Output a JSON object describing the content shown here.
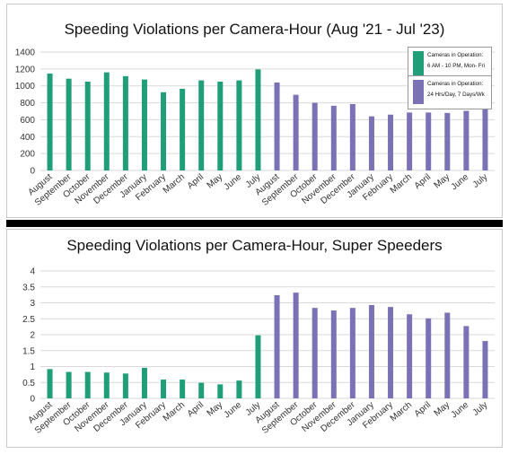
{
  "colors": {
    "green": "#1f9e78",
    "purple": "#7a72b5"
  },
  "chart_data": [
    {
      "type": "bar",
      "title": "Speeding Violations per Camera-Hour (Aug '21 - Jul '23)",
      "categories": [
        "August",
        "September",
        "October",
        "November",
        "December",
        "January",
        "February",
        "March",
        "April",
        "May",
        "June",
        "July",
        "August",
        "September",
        "October",
        "November",
        "December",
        "January",
        "February",
        "March",
        "April",
        "May",
        "June",
        "July"
      ],
      "values": [
        1145,
        1085,
        1050,
        1160,
        1115,
        1075,
        925,
        965,
        1065,
        1050,
        1065,
        1195,
        1040,
        895,
        800,
        765,
        785,
        640,
        660,
        685,
        685,
        680,
        705,
        800
      ],
      "bar_colors": [
        "green",
        "green",
        "green",
        "green",
        "green",
        "green",
        "green",
        "green",
        "green",
        "green",
        "green",
        "green",
        "purple",
        "purple",
        "purple",
        "purple",
        "purple",
        "purple",
        "purple",
        "purple",
        "purple",
        "purple",
        "purple",
        "purple"
      ],
      "ylim": [
        0,
        1400
      ],
      "yticks": [
        "0",
        "200",
        "400",
        "600",
        "800",
        "1000",
        "1200",
        "1400"
      ],
      "grid": true,
      "legend": [
        {
          "color": "green",
          "line1": "Cameras in Operation:",
          "line2": "6 AM - 10 PM, Mon- Fri"
        },
        {
          "color": "purple",
          "line1": "Cameras in Operation:",
          "line2": "24 Hrs/Day, 7 Days/Wk"
        }
      ]
    },
    {
      "type": "bar",
      "title": "Speeding Violations per Camera-Hour, Super Speeders",
      "categories": [
        "August",
        "September",
        "October",
        "November",
        "December",
        "January",
        "February",
        "March",
        "April",
        "May",
        "June",
        "July",
        "August",
        "September",
        "October",
        "November",
        "December",
        "January",
        "February",
        "March",
        "April",
        "May",
        "June",
        "July"
      ],
      "values": [
        0.92,
        0.83,
        0.83,
        0.81,
        0.78,
        0.96,
        0.59,
        0.59,
        0.49,
        0.44,
        0.56,
        1.98,
        3.24,
        3.32,
        2.84,
        2.76,
        2.84,
        2.93,
        2.87,
        2.64,
        2.51,
        2.69,
        2.27,
        1.8
      ],
      "bar_colors": [
        "green",
        "green",
        "green",
        "green",
        "green",
        "green",
        "green",
        "green",
        "green",
        "green",
        "green",
        "green",
        "purple",
        "purple",
        "purple",
        "purple",
        "purple",
        "purple",
        "purple",
        "purple",
        "purple",
        "purple",
        "purple",
        "purple"
      ],
      "ylim": [
        0,
        4
      ],
      "yticks": [
        "0",
        "0.5",
        "1",
        "1.5",
        "2",
        "2.5",
        "3",
        "3.5",
        "4"
      ],
      "grid": true
    }
  ]
}
